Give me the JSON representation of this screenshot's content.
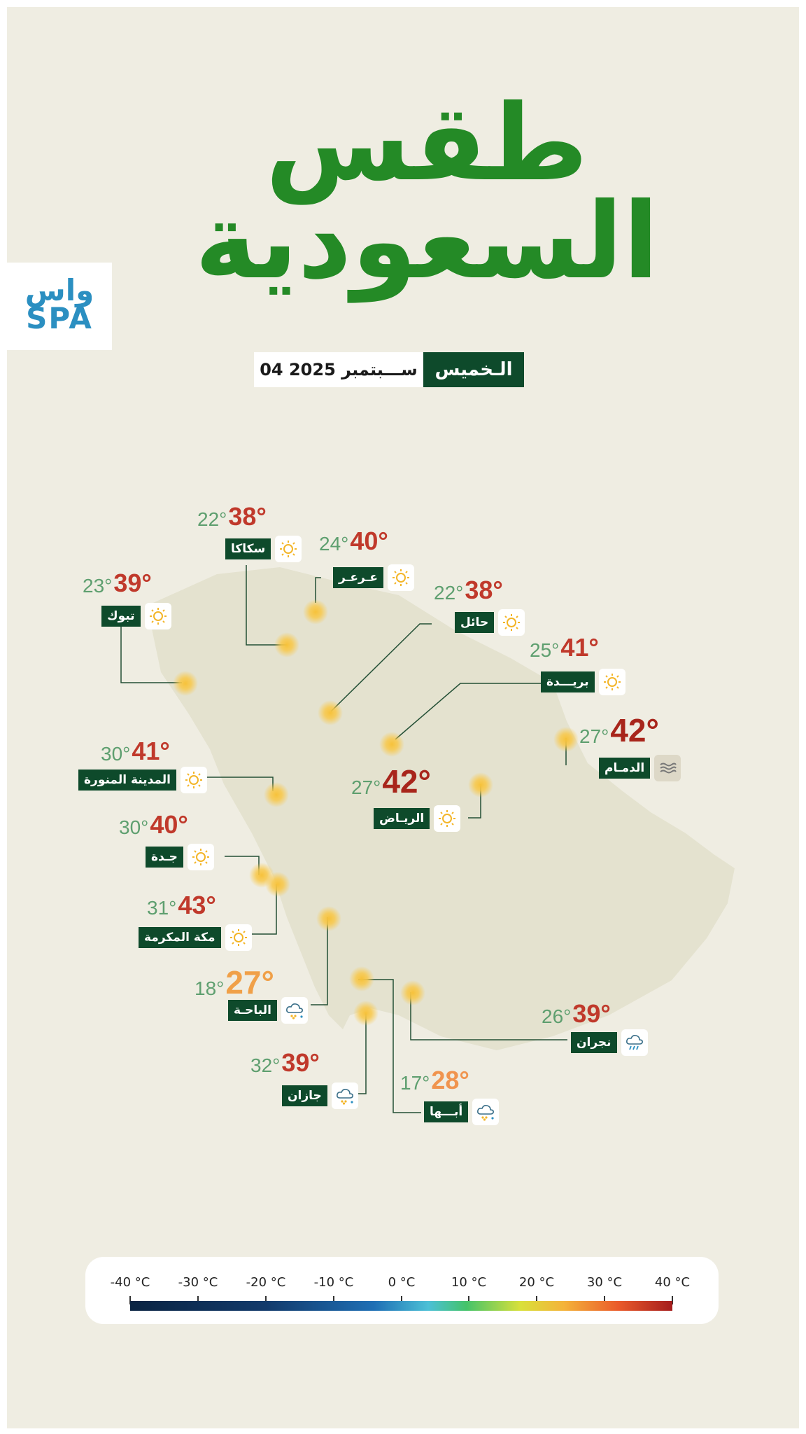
{
  "header": {
    "title_line1": "طقس",
    "title_line2": "السعودية",
    "logo_text_line1": "واس",
    "logo_text_line2": "SPA",
    "day": "الـخميس",
    "date": "04 ســـبتمبر 2025"
  },
  "cities": [
    {
      "name": "سكاكا",
      "min": "22°",
      "max": "38°",
      "icon": "sun-icon"
    },
    {
      "name": "عـرعـر",
      "min": "24°",
      "max": "40°",
      "icon": "sun-icon"
    },
    {
      "name": "تبوك",
      "min": "23°",
      "max": "39°",
      "icon": "sun-icon"
    },
    {
      "name": "حائل",
      "min": "22°",
      "max": "38°",
      "icon": "sun-icon"
    },
    {
      "name": "بريـــدة",
      "min": "25°",
      "max": "41°",
      "icon": "sun-icon"
    },
    {
      "name": "الدمـام",
      "min": "27°",
      "max": "42°",
      "icon": "haze-icon"
    },
    {
      "name": "المدينة المنورة",
      "min": "30°",
      "max": "41°",
      "icon": "sun-icon"
    },
    {
      "name": "الريـاض",
      "min": "27°",
      "max": "42°",
      "icon": "sun-icon"
    },
    {
      "name": "جـدة",
      "min": "30°",
      "max": "40°",
      "icon": "sun-icon"
    },
    {
      "name": "مكة المكرمة",
      "min": "31°",
      "max": "43°",
      "icon": "sun-icon"
    },
    {
      "name": "الباحـة",
      "min": "18°",
      "max": "27°",
      "icon": "cloud-rain-icon"
    },
    {
      "name": "نجران",
      "min": "26°",
      "max": "39°",
      "icon": "thunder-cloud-icon"
    },
    {
      "name": "جازان",
      "min": "32°",
      "max": "39°",
      "icon": "cloud-rain-icon"
    },
    {
      "name": "أبـــها",
      "min": "17°",
      "max": "28°",
      "icon": "cloud-rain-icon"
    }
  ],
  "scale": {
    "ticks": [
      "-40 °C",
      "-30 °C",
      "-20 °C",
      "-10 °C",
      "0 °C",
      "10 °C",
      "20 °C",
      "30 °C",
      "40 °C"
    ]
  },
  "colors": {
    "title_green": "#248a26",
    "label_green": "#0e4a2b",
    "min_temp": "#5e9f6f",
    "max_temp": "#c0392b"
  }
}
